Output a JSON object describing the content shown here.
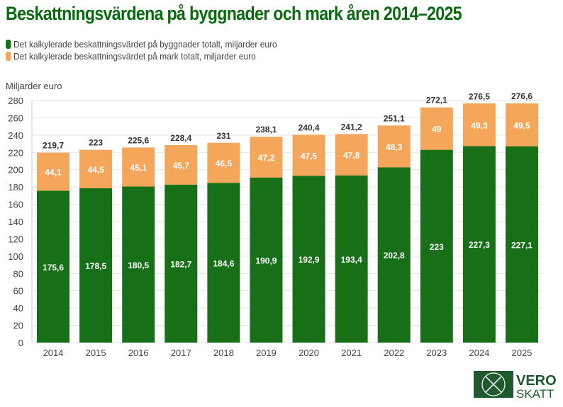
{
  "chart_data": {
    "type": "bar",
    "stacked": true,
    "title": "Beskattningsvärdena på byggnader och mark åren 2014–2025",
    "ylabel": "Miljarder euro",
    "ylim": [
      0,
      280
    ],
    "yticks": [
      0,
      20,
      40,
      60,
      80,
      100,
      120,
      140,
      160,
      180,
      200,
      220,
      240,
      260,
      280
    ],
    "grid": true,
    "legend_position": "top-left",
    "categories": [
      "2014",
      "2015",
      "2016",
      "2017",
      "2018",
      "2019",
      "2020",
      "2021",
      "2022",
      "2023",
      "2024",
      "2025"
    ],
    "series": [
      {
        "name": "Det kalkylerade beskattningsvärdet på byggnader totalt, miljarder euro",
        "color": "#176f17",
        "values": [
          175.6,
          178.5,
          180.5,
          182.7,
          184.6,
          190.9,
          192.9,
          193.4,
          202.8,
          223,
          227.3,
          227.1
        ]
      },
      {
        "name": "Det kalkylerade beskattningsvärdet på mark totalt, miljarder euro",
        "color": "#f4a65b",
        "values": [
          44.1,
          44.5,
          45.1,
          45.7,
          46.5,
          47.2,
          47.5,
          47.8,
          48.3,
          49,
          49.3,
          49.5
        ]
      }
    ],
    "totals": [
      219.7,
      223,
      225.6,
      228.4,
      231,
      238.1,
      240.4,
      241.2,
      251.1,
      272.1,
      276.5,
      276.6
    ]
  },
  "logo": {
    "text1": "VERO",
    "text2": "SKATT"
  }
}
